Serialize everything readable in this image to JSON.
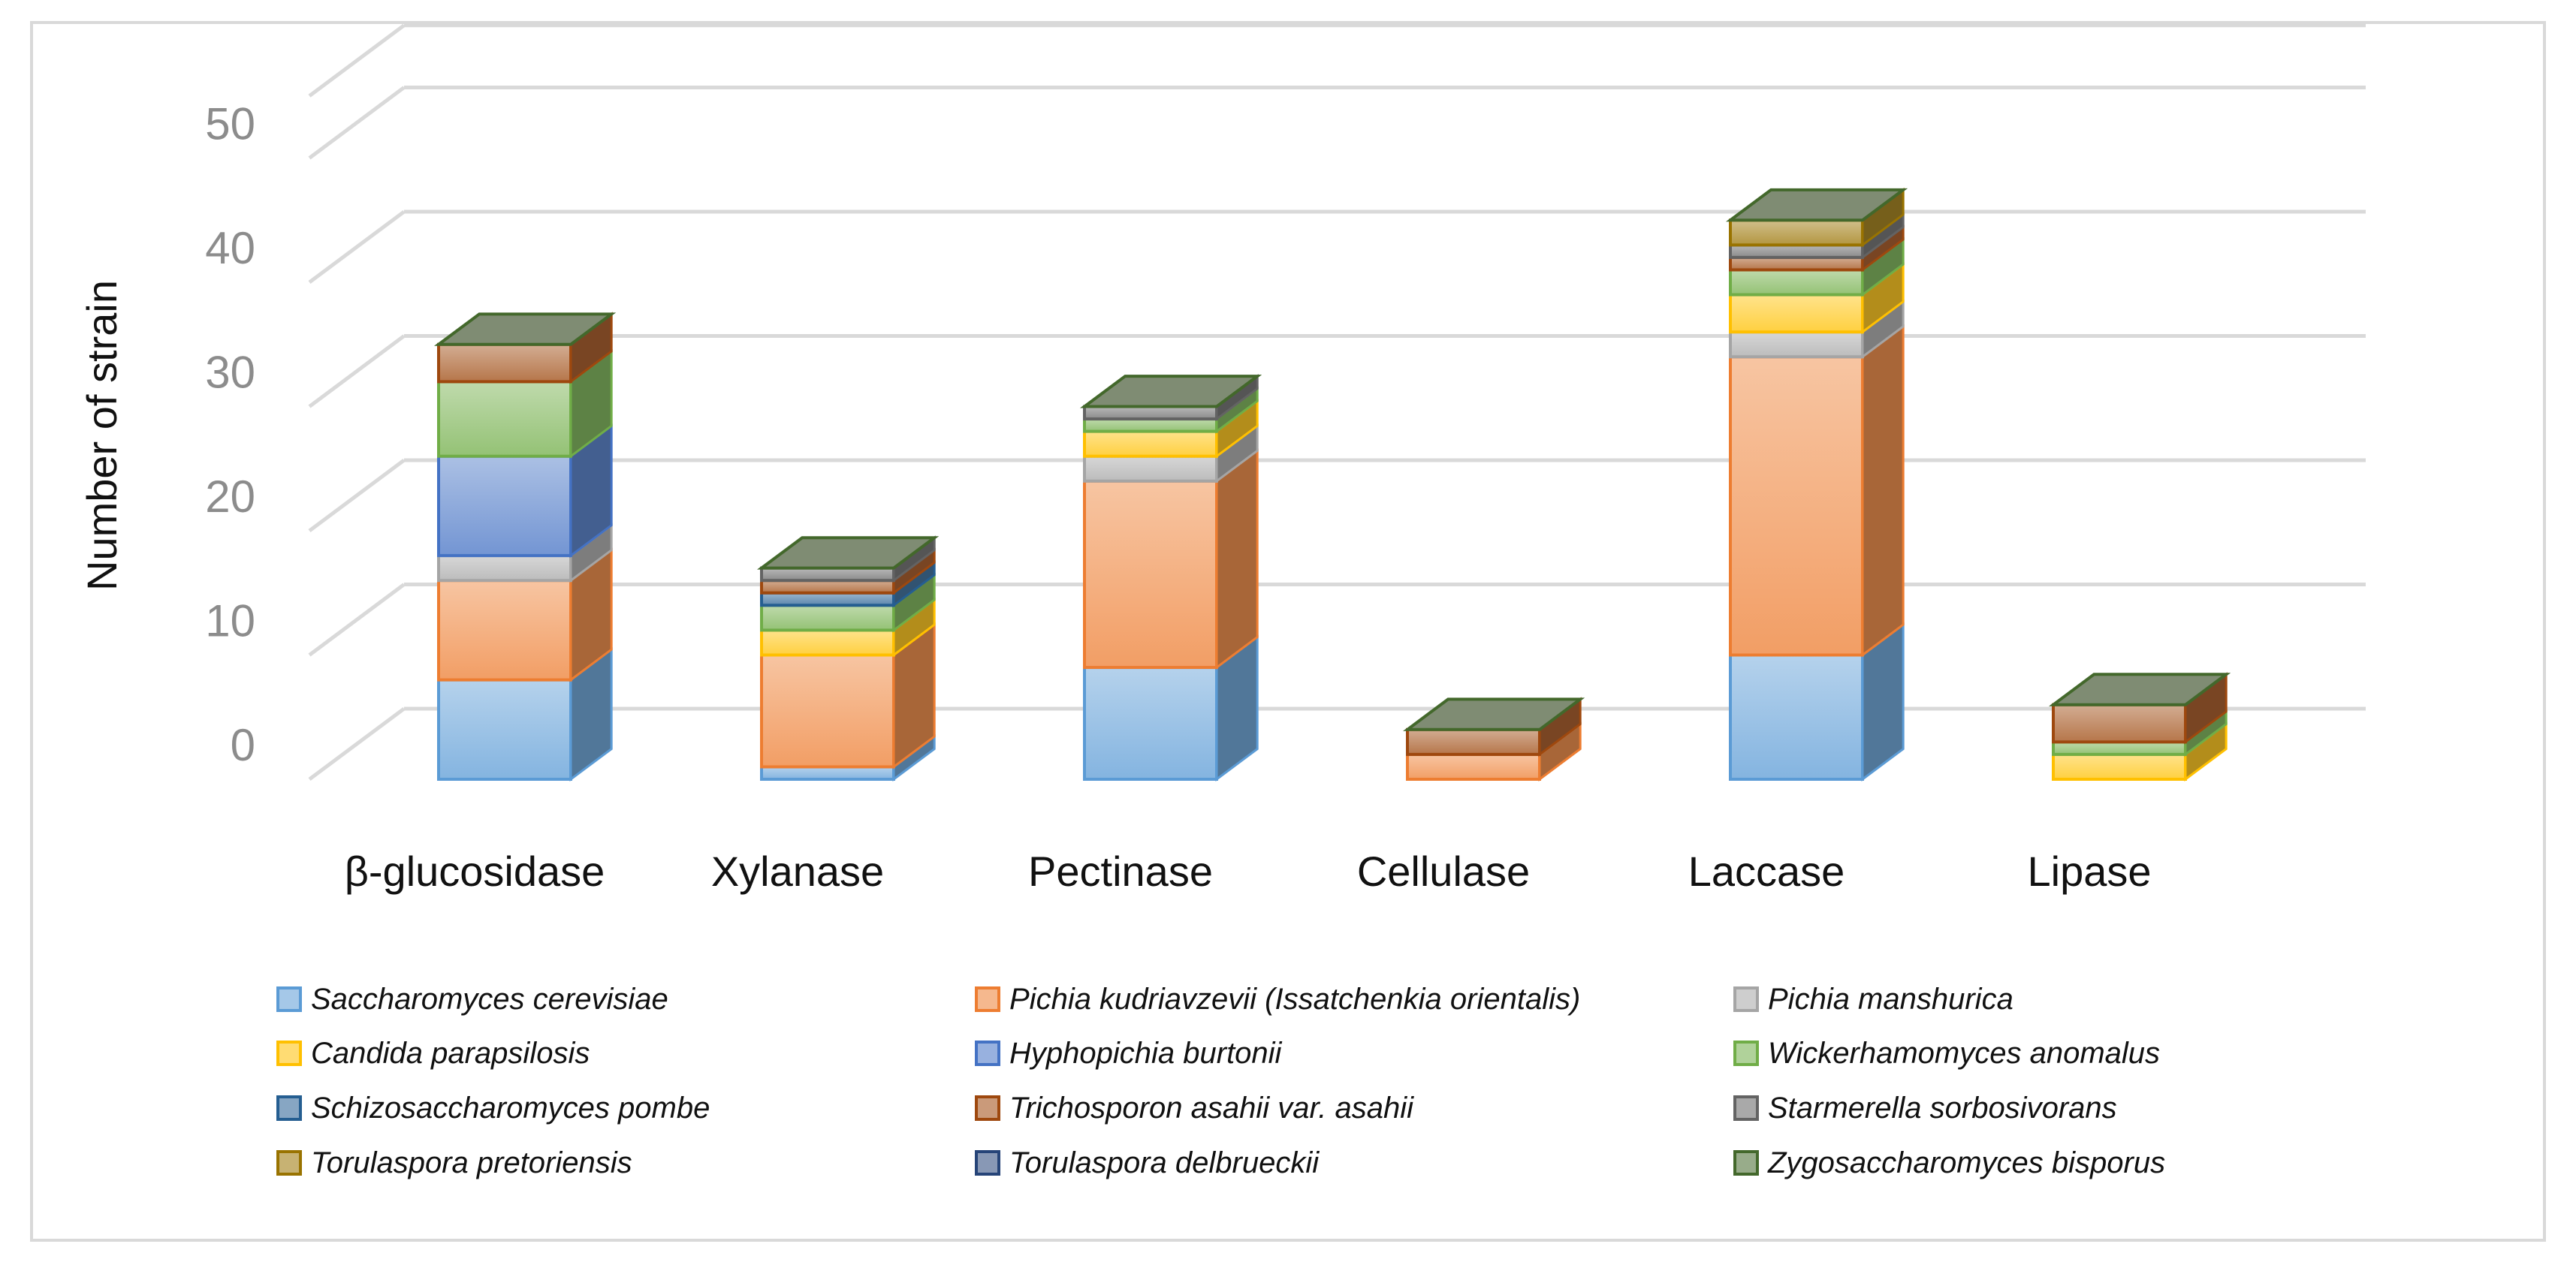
{
  "chart_data": {
    "type": "bar",
    "stacked": true,
    "three_d": true,
    "title": "",
    "xlabel": "",
    "ylabel": "Number of strain",
    "ylim": [
      0,
      55
    ],
    "yticks": [
      0,
      10,
      20,
      30,
      40,
      50
    ],
    "categories": [
      "β-glucosidase",
      "Xylanase",
      "Pectinase",
      "Cellulase",
      "Laccase",
      "Lipase"
    ],
    "series": [
      {
        "name": "Saccharomyces cerevisiae",
        "color": "#5B9BD5",
        "values": [
          8,
          1,
          9,
          0,
          10,
          0
        ]
      },
      {
        "name": "Pichia kudriavzevii  (Issatchenkia orientalis)",
        "color": "#ED7D31",
        "values": [
          8,
          9,
          15,
          2,
          24,
          0
        ]
      },
      {
        "name": "Pichia manshurica",
        "color": "#A5A5A5",
        "values": [
          2,
          0,
          2,
          0,
          2,
          0
        ]
      },
      {
        "name": "Candida parapsilosis",
        "color": "#FFC000",
        "values": [
          0,
          2,
          2,
          0,
          3,
          2
        ]
      },
      {
        "name": "Hyphopichia burtonii",
        "color": "#4472C4",
        "values": [
          8,
          0,
          0,
          0,
          0,
          0
        ]
      },
      {
        "name": "Wickerhamomyces anomalus",
        "color": "#70AD47",
        "values": [
          6,
          2,
          1,
          0,
          2,
          1
        ]
      },
      {
        "name": "Schizosaccharomyces pombe",
        "color": "#255E91",
        "values": [
          0,
          1,
          0,
          0,
          0,
          0
        ]
      },
      {
        "name": "Trichosporon asahii var. asahii",
        "color": "#9E480E",
        "values": [
          3,
          1,
          0,
          2,
          1,
          3
        ]
      },
      {
        "name": "Starmerella sorbosivorans",
        "color": "#636363",
        "values": [
          0,
          1,
          1,
          0,
          1,
          0
        ]
      },
      {
        "name": "Torulaspora pretoriensis",
        "color": "#997300",
        "values": [
          0,
          0,
          0,
          0,
          2,
          0
        ]
      },
      {
        "name": "Torulaspora delbrueckii",
        "color": "#264478",
        "values": [
          0,
          0,
          0,
          0,
          0,
          0
        ]
      },
      {
        "name": "Zygosaccharomyces bisporus",
        "color": "#43682B",
        "values": [
          0,
          0,
          0,
          0,
          0,
          0
        ]
      }
    ],
    "grid": true,
    "legend_position": "bottom"
  }
}
